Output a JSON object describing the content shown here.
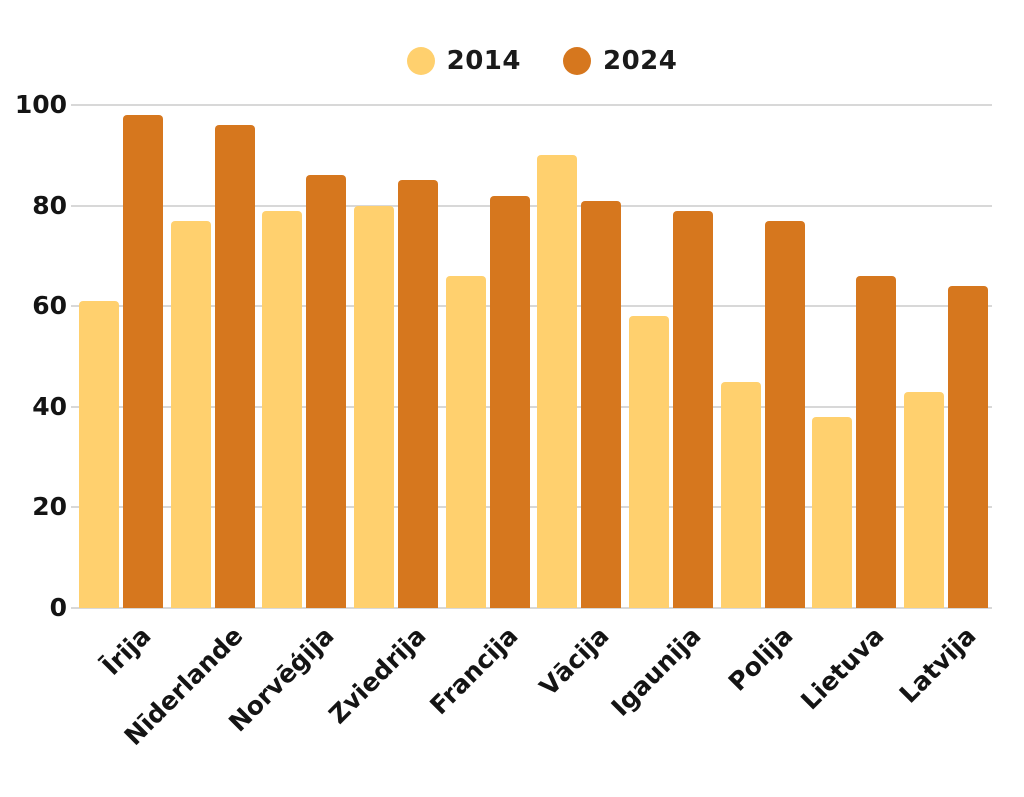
{
  "chart": {
    "background": "#ffffff",
    "text_color": "#141414",
    "gridline_color": "#d8d8d8"
  },
  "legend": {
    "items": [
      {
        "label": "2014",
        "color": "#ffd06e"
      },
      {
        "label": "2024",
        "color": "#d6771e"
      }
    ]
  },
  "chart_data": {
    "type": "bar",
    "title": "",
    "categories": [
      "Īrija",
      "Nīderlande",
      "Norvēģija",
      "Zviedrija",
      "Francija",
      "Vācija",
      "Igaunija",
      "Polija",
      "Lietuva",
      "Latvija"
    ],
    "series": [
      {
        "name": "2014",
        "color": "#ffd06e",
        "values": [
          61,
          77,
          79,
          80,
          66,
          90,
          58,
          45,
          38,
          43
        ]
      },
      {
        "name": "2024",
        "color": "#d6771e",
        "values": [
          98,
          96,
          86,
          85,
          82,
          81,
          79,
          77,
          66,
          64
        ]
      }
    ],
    "xlabel": "",
    "ylabel": "",
    "ylim": [
      0,
      100
    ],
    "yticks": [
      0,
      20,
      40,
      60,
      80,
      100
    ],
    "grid": true,
    "legend_position": "top-center"
  }
}
